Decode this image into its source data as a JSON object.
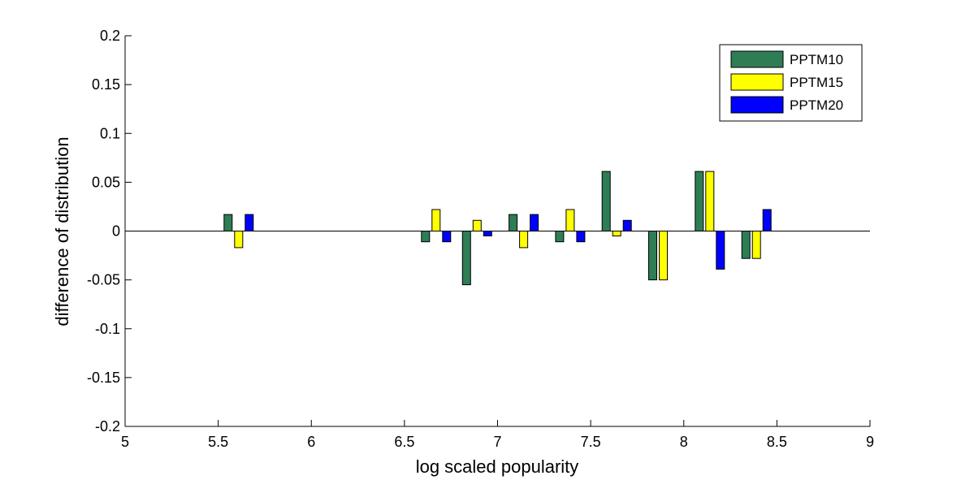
{
  "chart_data": {
    "type": "bar",
    "title": "",
    "xlabel": "log scaled popularity",
    "ylabel": "difference of distribution",
    "xlim": [
      5,
      9
    ],
    "ylim": [
      -0.2,
      0.2
    ],
    "xticks": [
      "5",
      "5.5",
      "6",
      "6.5",
      "7",
      "7.5",
      "8",
      "8.5",
      "9"
    ],
    "yticks": [
      "0.2",
      "0.15",
      "0.1",
      "0.05",
      "0",
      "-0.05",
      "-0.1",
      "-0.15",
      "-0.2"
    ],
    "grid": false,
    "legend_position": "top-right",
    "x": [
      5.61,
      6.67,
      6.89,
      7.14,
      7.39,
      7.64,
      7.89,
      8.14,
      8.39
    ],
    "series": [
      {
        "name": "PPTM10",
        "color": "#2e7d55",
        "values": [
          0.017,
          -0.011,
          -0.055,
          0.017,
          -0.011,
          0.061,
          -0.05,
          0.061,
          -0.028
        ]
      },
      {
        "name": "PPTM15",
        "color": "#ffff00",
        "values": [
          -0.017,
          0.022,
          0.011,
          -0.017,
          0.022,
          -0.005,
          -0.05,
          0.061,
          -0.028
        ]
      },
      {
        "name": "PPTM20",
        "color": "#0000ff",
        "values": [
          0.017,
          -0.011,
          -0.005,
          0.017,
          -0.011,
          0.011,
          0.0,
          -0.039,
          0.022
        ]
      }
    ]
  }
}
